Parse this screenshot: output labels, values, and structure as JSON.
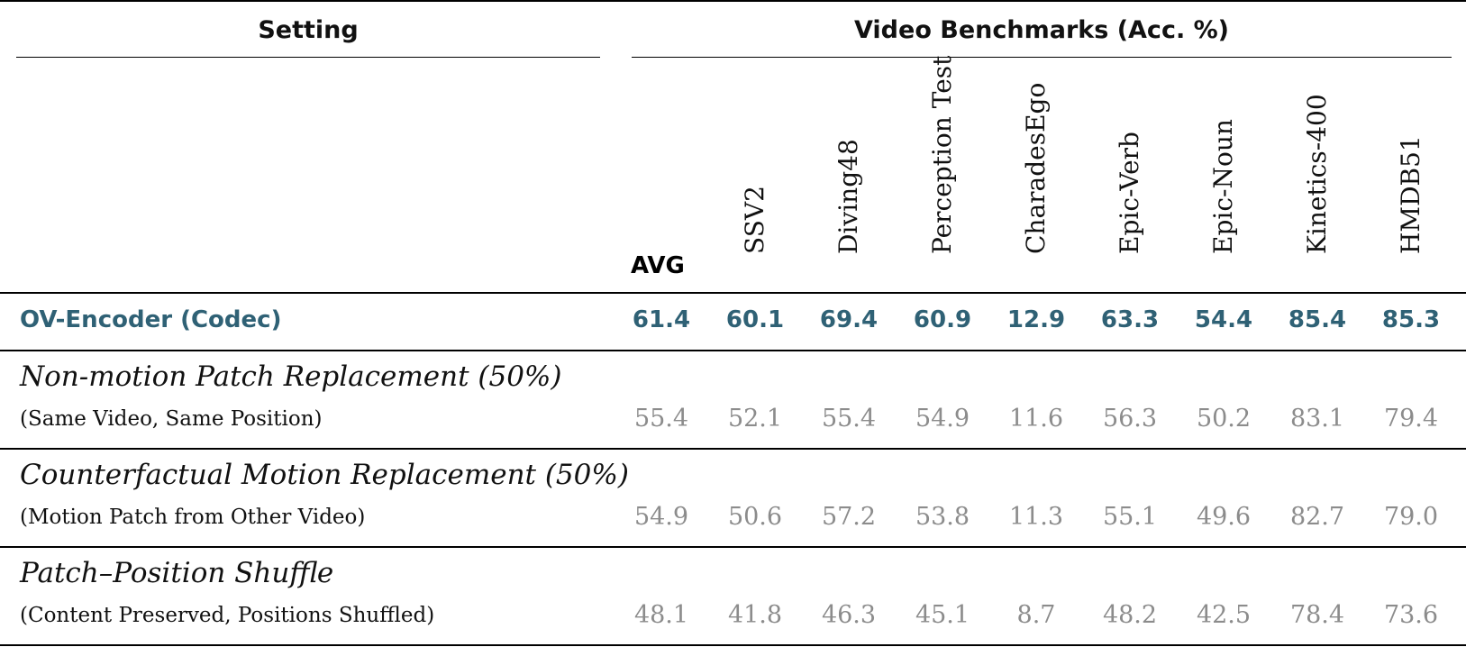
{
  "header": {
    "setting": "Setting",
    "benchmarks": "Video Benchmarks (Acc. %)"
  },
  "columns": [
    "AVG",
    "SSV2",
    "Diving48",
    "Perception Test",
    "CharadesEgo",
    "Epic-Verb",
    "Epic-Noun",
    "Kinetics-400",
    "HMDB51"
  ],
  "rows": [
    {
      "title": "OV-Encoder (Codec)",
      "values": [
        "61.4",
        "60.1",
        "69.4",
        "60.9",
        "12.9",
        "63.3",
        "54.4",
        "85.4",
        "85.3"
      ]
    },
    {
      "title": "Non-motion Patch Replacement (50%)",
      "subtitle": "(Same Video, Same Position)",
      "values": [
        "55.4",
        "52.1",
        "55.4",
        "54.9",
        "11.6",
        "56.3",
        "50.2",
        "83.1",
        "79.4"
      ]
    },
    {
      "title": "Counterfactual Motion Replacement (50%)",
      "subtitle": "(Motion Patch from Other Video)",
      "values": [
        "54.9",
        "50.6",
        "57.2",
        "53.8",
        "11.3",
        "55.1",
        "49.6",
        "82.7",
        "79.0"
      ]
    },
    {
      "title": "Patch–Position Shuffle",
      "subtitle": "(Content Preserved, Positions Shuffled)",
      "values": [
        "48.1",
        "41.8",
        "46.3",
        "45.1",
        "8.7",
        "48.2",
        "42.5",
        "78.4",
        "73.6"
      ]
    }
  ],
  "colors": {
    "accent": "#2f6175",
    "muted": "#8c8c8c",
    "text": "#111111"
  }
}
